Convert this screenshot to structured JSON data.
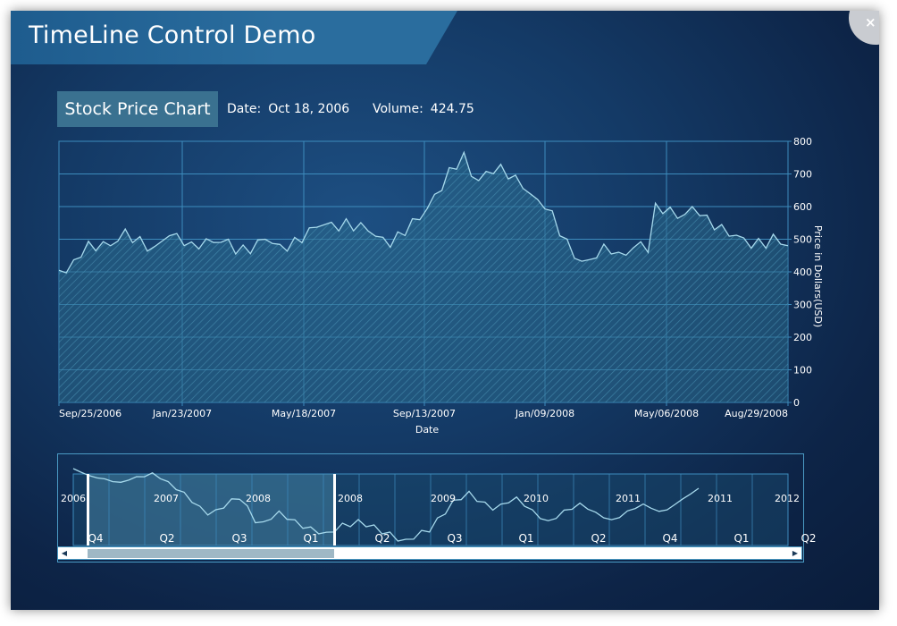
{
  "window": {
    "title": "TimeLine Control Demo",
    "close_label": "×"
  },
  "header": {
    "chart_label": "Stock Price Chart",
    "date_label": "Date:",
    "date_value": "Oct 18, 2006",
    "volume_label": "Volume:",
    "volume_value": "424.75"
  },
  "chart_data": {
    "type": "area",
    "xlabel": "Date",
    "ylabel": "Price in Dollars(USD)",
    "ylim": [
      0,
      800
    ],
    "yticks": [
      "0",
      "100",
      "200",
      "300",
      "400",
      "500",
      "600",
      "700",
      "800"
    ],
    "xticks": [
      "Sep/25/2006",
      "Jan/23/2007",
      "May/18/2007",
      "Sep/13/2007",
      "Jan/09/2008",
      "May/06/2008",
      "Aug/29/2008"
    ],
    "grid": true,
    "x_start": "Sep/25/2006",
    "x_end": "Sep/15/2008",
    "series": [
      {
        "values": [
          405,
          410,
          420,
          450,
          470,
          480,
          495,
          490,
          500,
          510,
          495,
          490,
          485,
          480,
          500,
          510,
          495,
          490,
          480,
          495,
          500,
          490,
          485,
          480,
          470,
          475,
          480,
          490,
          495,
          480,
          470,
          485,
          500,
          510,
          520,
          530,
          540,
          545,
          550,
          555,
          540,
          530,
          520,
          510,
          505,
          500,
          510,
          520,
          540,
          560,
          600,
          640,
          670,
          700,
          720,
          745,
          700,
          690,
          710,
          715,
          705,
          690,
          680,
          670,
          650,
          620,
          600,
          560,
          520,
          490,
          460,
          440,
          430,
          445,
          460,
          470,
          455,
          470,
          475,
          480,
          460,
          590,
          600,
          595,
          580,
          570,
          585,
          575,
          560,
          555,
          540,
          520,
          500,
          490,
          480,
          495,
          500,
          505,
          490,
          480
        ]
      }
    ]
  },
  "timeline": {
    "year_labels": [
      "2006",
      "2007",
      "2008",
      "2008",
      "2009",
      "2010",
      "2011",
      "2011",
      "2012"
    ],
    "quarter_labels": [
      "Q4",
      "Q2",
      "Q3",
      "Q1",
      "Q2",
      "Q3",
      "Q1",
      "Q2",
      "Q4",
      "Q1",
      "Q2"
    ],
    "series": [
      512,
      516,
      520,
      522,
      524,
      526,
      528,
      524,
      522,
      520,
      518,
      522,
      528,
      534,
      540,
      548,
      556,
      562,
      560,
      554,
      548,
      544,
      556,
      570,
      574,
      566,
      562,
      566,
      572,
      576,
      580,
      582,
      586,
      580,
      576,
      574,
      572,
      574,
      578,
      582,
      586,
      590,
      594,
      588,
      584,
      580,
      570,
      560,
      550,
      544,
      540,
      546,
      552,
      556,
      554,
      548,
      546,
      552,
      560,
      566,
      572,
      566,
      560,
      556,
      552,
      556,
      562,
      566,
      570,
      566,
      560,
      556,
      552,
      556,
      560,
      558,
      552,
      546,
      540,
      534
    ]
  },
  "colors": {
    "accent": "#2a6d9e",
    "line": "#a6d9ec",
    "grid": "#3d8cbd",
    "fill": "#2f6e8e"
  }
}
